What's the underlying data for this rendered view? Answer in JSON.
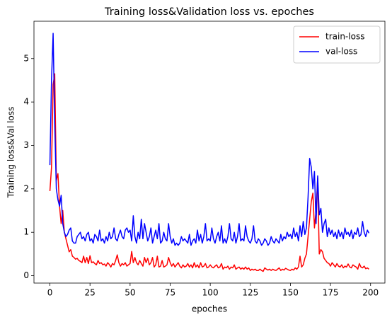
{
  "chart_data": {
    "type": "line",
    "title": "Training loss&Validation loss vs. epoches",
    "xlabel": "epoches",
    "ylabel": "Training loss&Val loss",
    "x": [
      0,
      1,
      2,
      3,
      4,
      5,
      6,
      7,
      8,
      9,
      10,
      11,
      12,
      13,
      14,
      15,
      16,
      17,
      18,
      19,
      20,
      21,
      22,
      23,
      24,
      25,
      26,
      27,
      28,
      29,
      30,
      31,
      32,
      33,
      34,
      35,
      36,
      37,
      38,
      39,
      40,
      41,
      42,
      43,
      44,
      45,
      46,
      47,
      48,
      49,
      50,
      51,
      52,
      53,
      54,
      55,
      56,
      57,
      58,
      59,
      60,
      61,
      62,
      63,
      64,
      65,
      66,
      67,
      68,
      69,
      70,
      71,
      72,
      73,
      74,
      75,
      76,
      77,
      78,
      79,
      80,
      81,
      82,
      83,
      84,
      85,
      86,
      87,
      88,
      89,
      90,
      91,
      92,
      93,
      94,
      95,
      96,
      97,
      98,
      99,
      100,
      101,
      102,
      103,
      104,
      105,
      106,
      107,
      108,
      109,
      110,
      111,
      112,
      113,
      114,
      115,
      116,
      117,
      118,
      119,
      120,
      121,
      122,
      123,
      124,
      125,
      126,
      127,
      128,
      129,
      130,
      131,
      132,
      133,
      134,
      135,
      136,
      137,
      138,
      139,
      140,
      141,
      142,
      143,
      144,
      145,
      146,
      147,
      148,
      149,
      150,
      151,
      152,
      153,
      154,
      155,
      156,
      157,
      158,
      159,
      160,
      161,
      162,
      163,
      164,
      165,
      166,
      167,
      168,
      169,
      170,
      171,
      172,
      173,
      174,
      175,
      176,
      177,
      178,
      179,
      180,
      181,
      182,
      183,
      184,
      185,
      186,
      187,
      188,
      189,
      190,
      191,
      192,
      193,
      194,
      195,
      196,
      197,
      198,
      199
    ],
    "series": [
      {
        "name": "train-loss",
        "color": "#ff0000",
        "values": [
          1.95,
          2.5,
          4.4,
          4.65,
          2.2,
          2.35,
          1.6,
          1.2,
          1.5,
          1.0,
          0.85,
          0.7,
          0.55,
          0.6,
          0.45,
          0.42,
          0.38,
          0.4,
          0.35,
          0.33,
          0.3,
          0.45,
          0.3,
          0.42,
          0.28,
          0.46,
          0.3,
          0.32,
          0.28,
          0.25,
          0.35,
          0.28,
          0.3,
          0.25,
          0.27,
          0.22,
          0.3,
          0.26,
          0.2,
          0.28,
          0.25,
          0.35,
          0.48,
          0.3,
          0.22,
          0.28,
          0.25,
          0.3,
          0.22,
          0.25,
          0.28,
          0.56,
          0.3,
          0.42,
          0.3,
          0.25,
          0.35,
          0.28,
          0.22,
          0.42,
          0.3,
          0.4,
          0.25,
          0.3,
          0.42,
          0.2,
          0.25,
          0.45,
          0.2,
          0.22,
          0.35,
          0.2,
          0.22,
          0.25,
          0.42,
          0.3,
          0.22,
          0.28,
          0.2,
          0.25,
          0.3,
          0.22,
          0.18,
          0.25,
          0.2,
          0.22,
          0.28,
          0.2,
          0.25,
          0.18,
          0.3,
          0.2,
          0.25,
          0.18,
          0.3,
          0.2,
          0.22,
          0.28,
          0.18,
          0.2,
          0.25,
          0.2,
          0.18,
          0.22,
          0.25,
          0.18,
          0.2,
          0.28,
          0.15,
          0.2,
          0.18,
          0.22,
          0.15,
          0.2,
          0.18,
          0.25,
          0.15,
          0.18,
          0.2,
          0.15,
          0.18,
          0.15,
          0.2,
          0.15,
          0.18,
          0.12,
          0.15,
          0.13,
          0.15,
          0.12,
          0.12,
          0.15,
          0.12,
          0.1,
          0.18,
          0.15,
          0.13,
          0.15,
          0.12,
          0.15,
          0.13,
          0.12,
          0.15,
          0.18,
          0.12,
          0.15,
          0.13,
          0.17,
          0.15,
          0.13,
          0.12,
          0.15,
          0.13,
          0.18,
          0.15,
          0.2,
          0.45,
          0.2,
          0.25,
          0.4,
          0.5,
          0.9,
          1.3,
          1.7,
          1.9,
          1.1,
          1.5,
          2.25,
          0.5,
          0.6,
          0.55,
          0.4,
          0.35,
          0.3,
          0.28,
          0.22,
          0.3,
          0.25,
          0.2,
          0.28,
          0.22,
          0.2,
          0.25,
          0.18,
          0.22,
          0.2,
          0.27,
          0.2,
          0.18,
          0.25,
          0.22,
          0.2,
          0.15,
          0.28,
          0.2,
          0.18,
          0.22,
          0.16,
          0.18,
          0.15
        ]
      },
      {
        "name": "val-loss",
        "color": "#0000ff",
        "values": [
          2.55,
          4.5,
          5.58,
          3.5,
          2.0,
          1.75,
          1.6,
          1.85,
          1.2,
          1.0,
          0.9,
          0.95,
          1.05,
          1.1,
          0.8,
          0.75,
          0.75,
          0.9,
          0.95,
          1.0,
          0.85,
          0.9,
          0.8,
          0.95,
          1.0,
          0.8,
          0.85,
          0.75,
          0.95,
          0.9,
          0.8,
          1.05,
          0.8,
          0.85,
          0.75,
          0.9,
          0.8,
          1.0,
          0.85,
          0.9,
          1.1,
          0.85,
          0.8,
          0.95,
          1.05,
          0.9,
          0.85,
          1.05,
          1.1,
          1.0,
          1.05,
          0.8,
          1.38,
          0.9,
          0.75,
          1.0,
          0.85,
          1.3,
          0.85,
          1.2,
          1.0,
          0.8,
          0.9,
          1.1,
          0.75,
          0.9,
          1.05,
          0.85,
          1.2,
          0.75,
          0.8,
          1.0,
          0.85,
          0.8,
          1.2,
          0.9,
          0.75,
          0.85,
          0.7,
          0.75,
          0.7,
          0.75,
          0.9,
          0.8,
          0.85,
          0.8,
          0.75,
          0.95,
          0.7,
          0.8,
          0.85,
          0.75,
          1.05,
          0.8,
          0.95,
          0.75,
          0.9,
          1.2,
          0.8,
          0.85,
          0.8,
          1.1,
          0.85,
          0.75,
          0.9,
          1.0,
          0.8,
          1.15,
          0.75,
          0.85,
          0.75,
          0.9,
          1.2,
          0.85,
          0.8,
          1.0,
          0.75,
          0.9,
          1.2,
          0.8,
          0.85,
          0.8,
          1.15,
          0.9,
          0.8,
          0.75,
          0.85,
          1.15,
          0.8,
          0.75,
          0.85,
          0.8,
          0.7,
          0.75,
          0.85,
          0.8,
          0.7,
          0.75,
          0.9,
          0.8,
          0.75,
          0.85,
          0.8,
          0.75,
          0.95,
          0.8,
          0.9,
          0.85,
          1.0,
          0.9,
          0.95,
          0.85,
          1.1,
          0.9,
          1.0,
          0.8,
          1.15,
          0.9,
          1.25,
          0.95,
          1.1,
          1.8,
          2.7,
          2.5,
          2.0,
          2.4,
          1.2,
          2.3,
          1.4,
          1.55,
          1.0,
          1.2,
          1.3,
          0.9,
          1.1,
          0.95,
          1.05,
          0.9,
          1.0,
          0.85,
          1.05,
          0.9,
          1.0,
          0.85,
          1.1,
          0.95,
          1.0,
          0.9,
          1.05,
          0.85,
          1.0,
          0.95,
          1.1,
          0.9,
          0.95,
          1.25,
          1.0,
          0.9,
          1.05,
          0.98
        ]
      }
    ],
    "xlim": [
      -9.95,
      208.95
    ],
    "xticks": [
      0,
      25,
      50,
      75,
      100,
      125,
      150,
      175,
      200
    ],
    "ylim": [
      -0.17,
      5.86
    ],
    "yticks": [
      0,
      1,
      2,
      3,
      4,
      5
    ],
    "grid": false,
    "legend": "upper right"
  }
}
